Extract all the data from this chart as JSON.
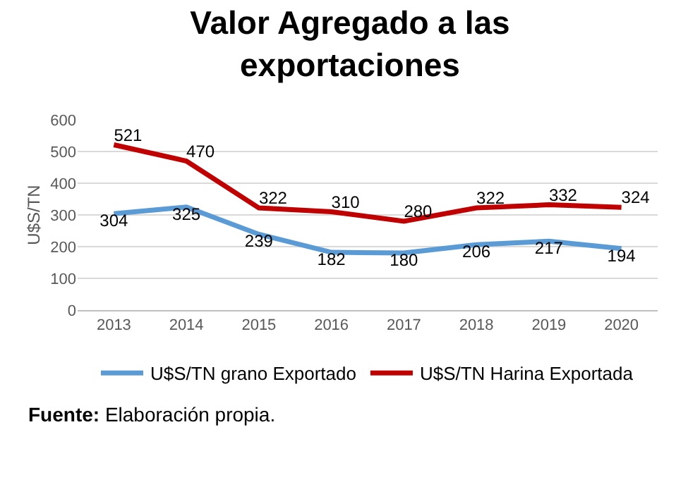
{
  "chart_data": {
    "type": "line",
    "title": "Valor Agregado a las\nexportaciones",
    "ylabel": "U$S/TN",
    "categories": [
      "2013",
      "2014",
      "2015",
      "2016",
      "2017",
      "2018",
      "2019",
      "2020"
    ],
    "series": [
      {
        "name": "U$S/TN grano Exportado",
        "color": "#5b9bd5",
        "values": [
          304,
          325,
          239,
          182,
          180,
          206,
          217,
          194
        ]
      },
      {
        "name": "U$S/TN Harina Exportada",
        "color": "#c00000",
        "values": [
          521,
          470,
          322,
          310,
          280,
          322,
          332,
          324
        ]
      }
    ],
    "ylim": [
      0,
      600
    ],
    "yticks": [
      0,
      100,
      200,
      300,
      400,
      500,
      600
    ],
    "grid": "y",
    "legend": "bottom",
    "data_labels": true,
    "marker": "none",
    "line_style": "solid",
    "annotations": [
      "Fuente: Elaboración propia."
    ]
  }
}
